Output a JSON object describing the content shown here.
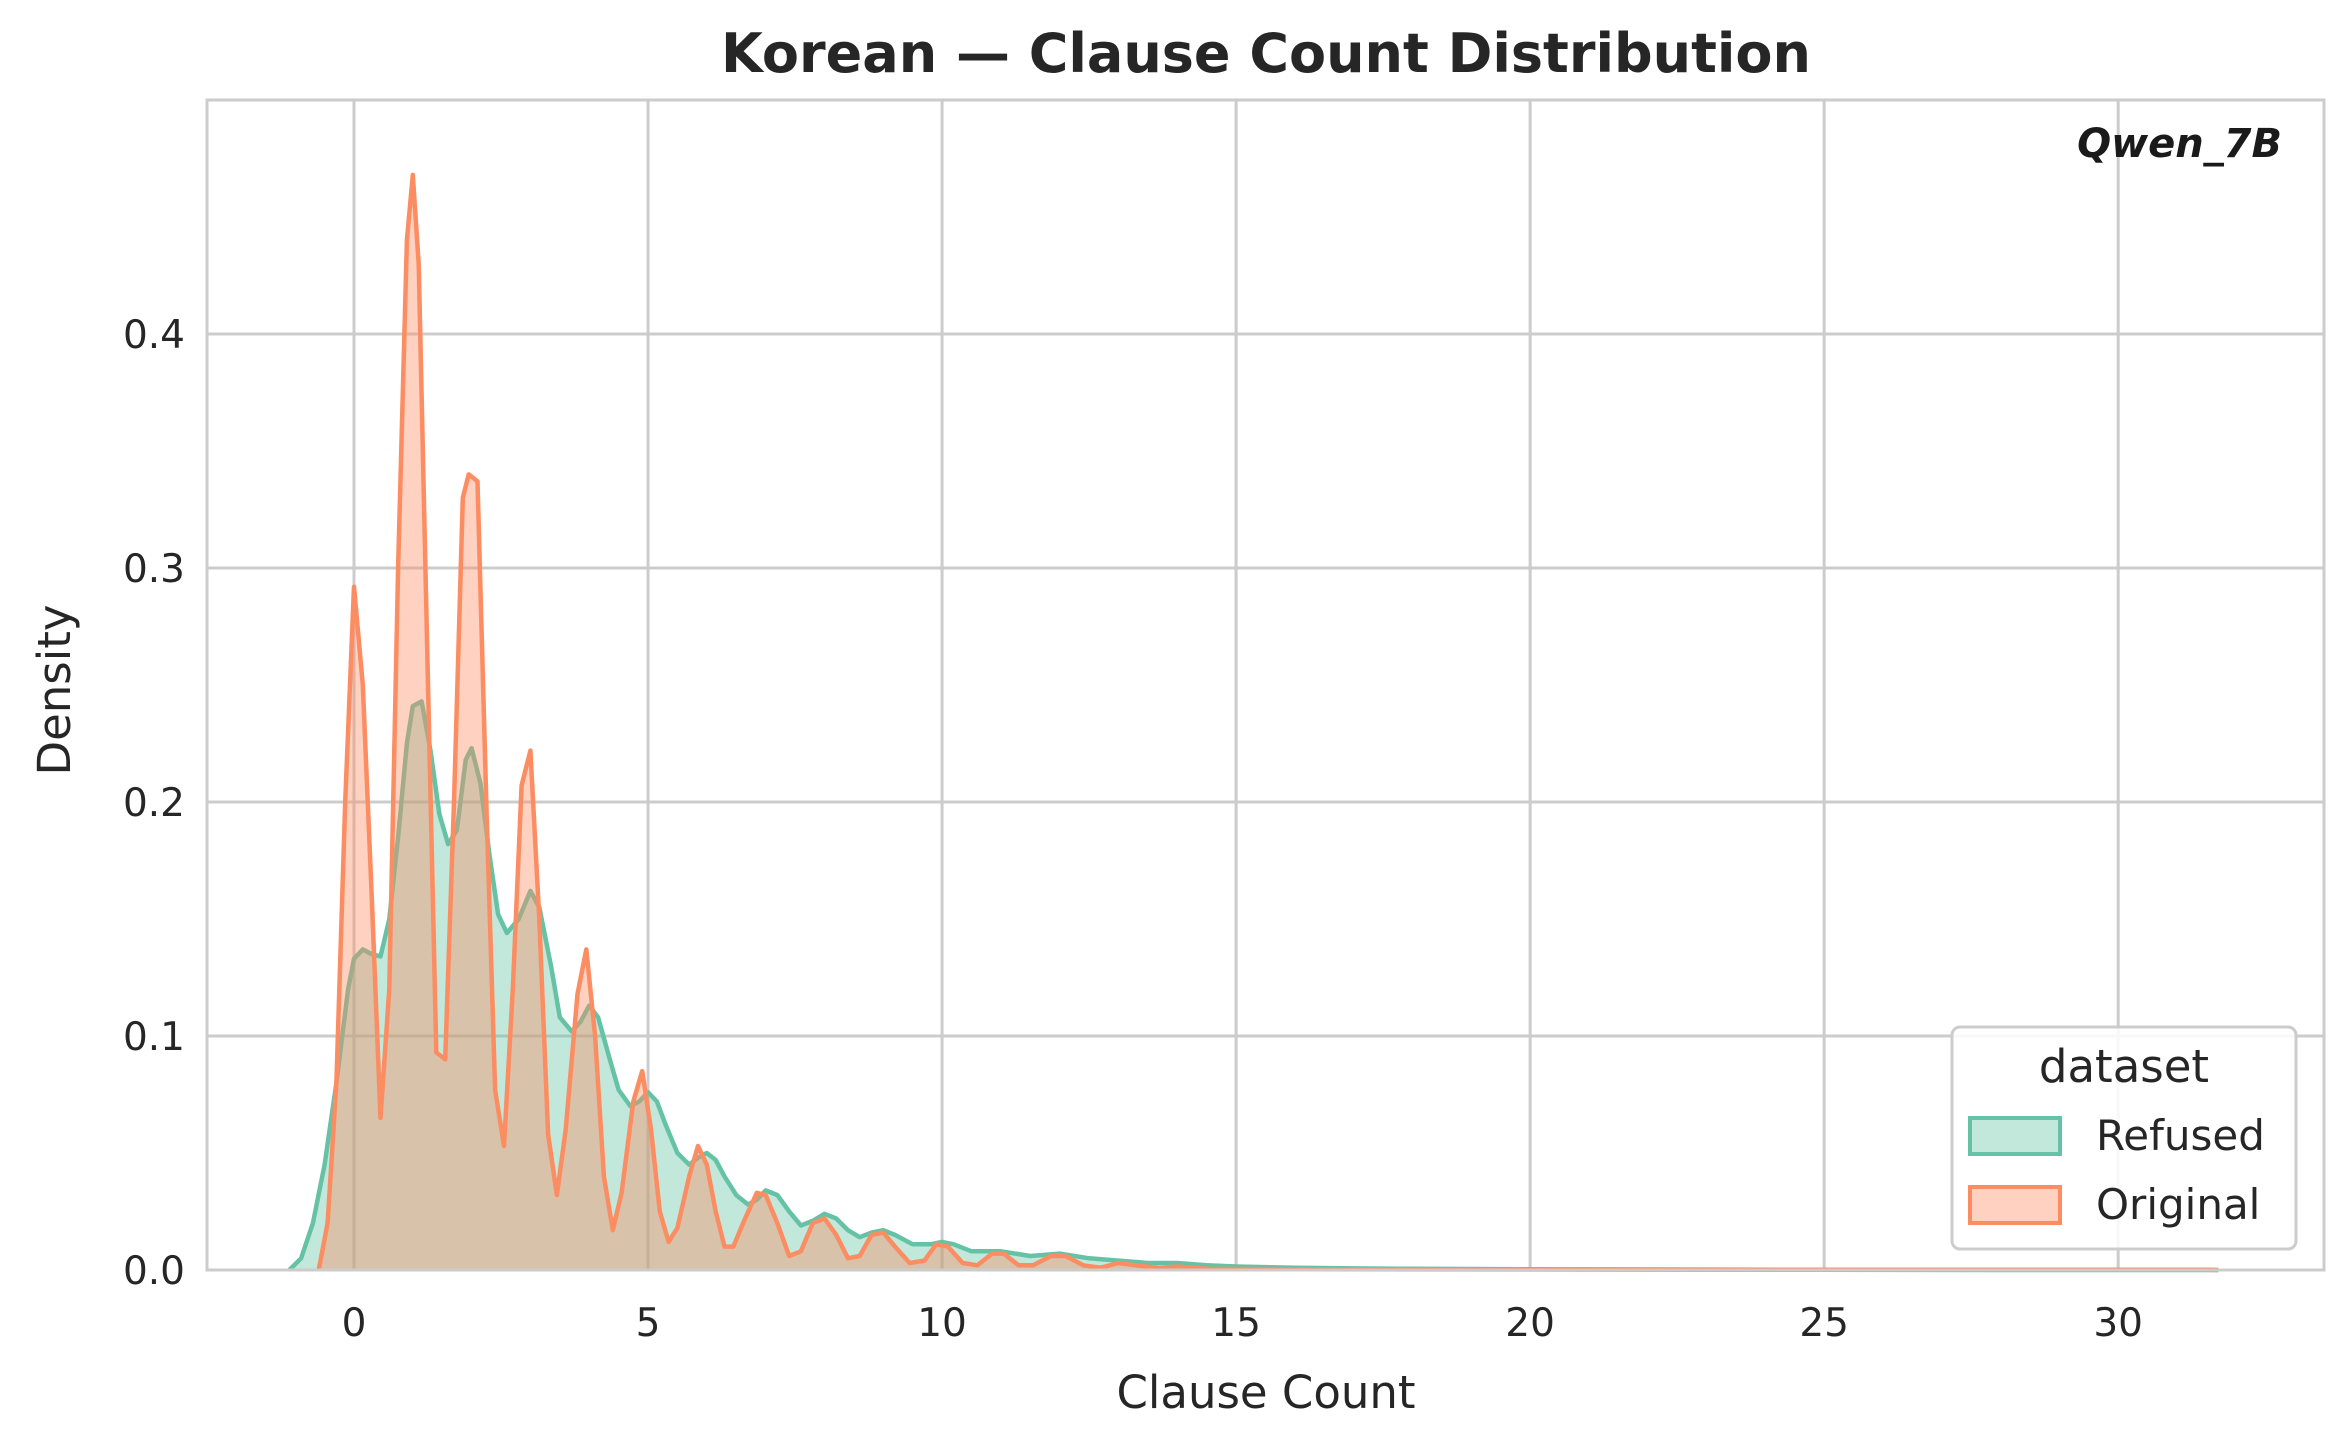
{
  "chart_data": {
    "type": "area",
    "title": "Korean — Clause Count Distribution",
    "xlabel": "Clause Count",
    "ylabel": "Density",
    "annotation": "Qwen_7B",
    "xlim": [
      -2.5,
      33.5
    ],
    "ylim": [
      0,
      0.5
    ],
    "xticks": [
      0,
      5,
      10,
      15,
      20,
      25,
      30
    ],
    "yticks": [
      0.0,
      0.1,
      0.2,
      0.3,
      0.4
    ],
    "xtick_labels": [
      "0",
      "5",
      "10",
      "15",
      "20",
      "25",
      "30"
    ],
    "ytick_labels": [
      "0.0",
      "0.1",
      "0.2",
      "0.3",
      "0.4"
    ],
    "grid": true,
    "legend": {
      "title": "dataset",
      "position": "lower-right"
    },
    "series": [
      {
        "name": "Refused",
        "color": "#66c2a5",
        "points": [
          [
            -1.1,
            0.0
          ],
          [
            -0.9,
            0.005
          ],
          [
            -0.7,
            0.02
          ],
          [
            -0.5,
            0.045
          ],
          [
            -0.3,
            0.08
          ],
          [
            -0.1,
            0.12
          ],
          [
            0.0,
            0.133
          ],
          [
            0.15,
            0.137
          ],
          [
            0.3,
            0.135
          ],
          [
            0.45,
            0.134
          ],
          [
            0.6,
            0.15
          ],
          [
            0.75,
            0.185
          ],
          [
            0.9,
            0.225
          ],
          [
            1.0,
            0.241
          ],
          [
            1.15,
            0.243
          ],
          [
            1.3,
            0.222
          ],
          [
            1.45,
            0.195
          ],
          [
            1.6,
            0.182
          ],
          [
            1.75,
            0.188
          ],
          [
            1.9,
            0.218
          ],
          [
            2.0,
            0.223
          ],
          [
            2.15,
            0.208
          ],
          [
            2.3,
            0.178
          ],
          [
            2.45,
            0.152
          ],
          [
            2.6,
            0.144
          ],
          [
            2.8,
            0.15
          ],
          [
            3.0,
            0.162
          ],
          [
            3.15,
            0.155
          ],
          [
            3.35,
            0.13
          ],
          [
            3.5,
            0.108
          ],
          [
            3.7,
            0.102
          ],
          [
            3.85,
            0.106
          ],
          [
            4.0,
            0.113
          ],
          [
            4.15,
            0.108
          ],
          [
            4.35,
            0.09
          ],
          [
            4.5,
            0.077
          ],
          [
            4.7,
            0.07
          ],
          [
            4.85,
            0.072
          ],
          [
            5.0,
            0.076
          ],
          [
            5.15,
            0.072
          ],
          [
            5.3,
            0.062
          ],
          [
            5.5,
            0.05
          ],
          [
            5.7,
            0.045
          ],
          [
            5.85,
            0.048
          ],
          [
            6.0,
            0.05
          ],
          [
            6.15,
            0.047
          ],
          [
            6.3,
            0.04
          ],
          [
            6.5,
            0.032
          ],
          [
            6.7,
            0.028
          ],
          [
            6.85,
            0.03
          ],
          [
            7.0,
            0.034
          ],
          [
            7.2,
            0.032
          ],
          [
            7.4,
            0.025
          ],
          [
            7.6,
            0.019
          ],
          [
            7.8,
            0.021
          ],
          [
            8.0,
            0.024
          ],
          [
            8.2,
            0.022
          ],
          [
            8.4,
            0.017
          ],
          [
            8.6,
            0.014
          ],
          [
            8.8,
            0.016
          ],
          [
            9.0,
            0.017
          ],
          [
            9.2,
            0.015
          ],
          [
            9.5,
            0.011
          ],
          [
            9.8,
            0.011
          ],
          [
            10.0,
            0.012
          ],
          [
            10.2,
            0.011
          ],
          [
            10.5,
            0.008
          ],
          [
            11.0,
            0.008
          ],
          [
            11.5,
            0.006
          ],
          [
            12.0,
            0.007
          ],
          [
            12.5,
            0.005
          ],
          [
            13.0,
            0.004
          ],
          [
            13.5,
            0.003
          ],
          [
            14.0,
            0.003
          ],
          [
            14.5,
            0.002
          ],
          [
            15.0,
            0.0015
          ],
          [
            16.0,
            0.001
          ],
          [
            17.0,
            0.0007
          ],
          [
            18.0,
            0.0005
          ],
          [
            20.0,
            0.0003
          ],
          [
            22.0,
            0.0002
          ],
          [
            25.0,
            0.0001
          ],
          [
            28.0,
            0.0
          ],
          [
            31.7,
            0.0
          ]
        ]
      },
      {
        "name": "Original",
        "color": "#fc8d62",
        "points": [
          [
            -0.6,
            0.0
          ],
          [
            -0.45,
            0.02
          ],
          [
            -0.3,
            0.08
          ],
          [
            -0.15,
            0.2
          ],
          [
            0.0,
            0.292
          ],
          [
            0.15,
            0.25
          ],
          [
            0.3,
            0.16
          ],
          [
            0.45,
            0.065
          ],
          [
            0.6,
            0.12
          ],
          [
            0.75,
            0.3
          ],
          [
            0.9,
            0.44
          ],
          [
            1.0,
            0.468
          ],
          [
            1.1,
            0.43
          ],
          [
            1.25,
            0.26
          ],
          [
            1.4,
            0.093
          ],
          [
            1.55,
            0.09
          ],
          [
            1.7,
            0.2
          ],
          [
            1.85,
            0.33
          ],
          [
            1.95,
            0.34
          ],
          [
            2.1,
            0.337
          ],
          [
            2.25,
            0.2
          ],
          [
            2.4,
            0.077
          ],
          [
            2.55,
            0.053
          ],
          [
            2.7,
            0.12
          ],
          [
            2.85,
            0.207
          ],
          [
            3.0,
            0.222
          ],
          [
            3.15,
            0.15
          ],
          [
            3.3,
            0.058
          ],
          [
            3.45,
            0.032
          ],
          [
            3.6,
            0.06
          ],
          [
            3.8,
            0.118
          ],
          [
            3.95,
            0.137
          ],
          [
            4.1,
            0.1
          ],
          [
            4.25,
            0.04
          ],
          [
            4.4,
            0.017
          ],
          [
            4.55,
            0.033
          ],
          [
            4.75,
            0.072
          ],
          [
            4.9,
            0.085
          ],
          [
            5.05,
            0.06
          ],
          [
            5.2,
            0.025
          ],
          [
            5.35,
            0.012
          ],
          [
            5.5,
            0.018
          ],
          [
            5.7,
            0.04
          ],
          [
            5.85,
            0.053
          ],
          [
            6.0,
            0.045
          ],
          [
            6.15,
            0.025
          ],
          [
            6.3,
            0.01
          ],
          [
            6.45,
            0.01
          ],
          [
            6.65,
            0.022
          ],
          [
            6.85,
            0.033
          ],
          [
            7.0,
            0.032
          ],
          [
            7.2,
            0.02
          ],
          [
            7.4,
            0.006
          ],
          [
            7.6,
            0.008
          ],
          [
            7.8,
            0.02
          ],
          [
            8.0,
            0.022
          ],
          [
            8.2,
            0.015
          ],
          [
            8.4,
            0.005
          ],
          [
            8.6,
            0.006
          ],
          [
            8.8,
            0.015
          ],
          [
            9.0,
            0.016
          ],
          [
            9.2,
            0.01
          ],
          [
            9.45,
            0.003
          ],
          [
            9.7,
            0.004
          ],
          [
            9.9,
            0.011
          ],
          [
            10.1,
            0.01
          ],
          [
            10.35,
            0.003
          ],
          [
            10.6,
            0.002
          ],
          [
            10.85,
            0.007
          ],
          [
            11.05,
            0.007
          ],
          [
            11.3,
            0.002
          ],
          [
            11.55,
            0.002
          ],
          [
            11.85,
            0.006
          ],
          [
            12.1,
            0.006
          ],
          [
            12.4,
            0.002
          ],
          [
            12.7,
            0.001
          ],
          [
            13.0,
            0.003
          ],
          [
            13.3,
            0.002
          ],
          [
            13.7,
            0.0008
          ],
          [
            14.0,
            0.0015
          ],
          [
            14.5,
            0.0005
          ],
          [
            16.0,
            0.0003
          ],
          [
            20.0,
            0.0002
          ],
          [
            26.0,
            0.0001
          ],
          [
            31.5,
            0.0001
          ],
          [
            31.7,
            0.0
          ]
        ]
      }
    ]
  }
}
